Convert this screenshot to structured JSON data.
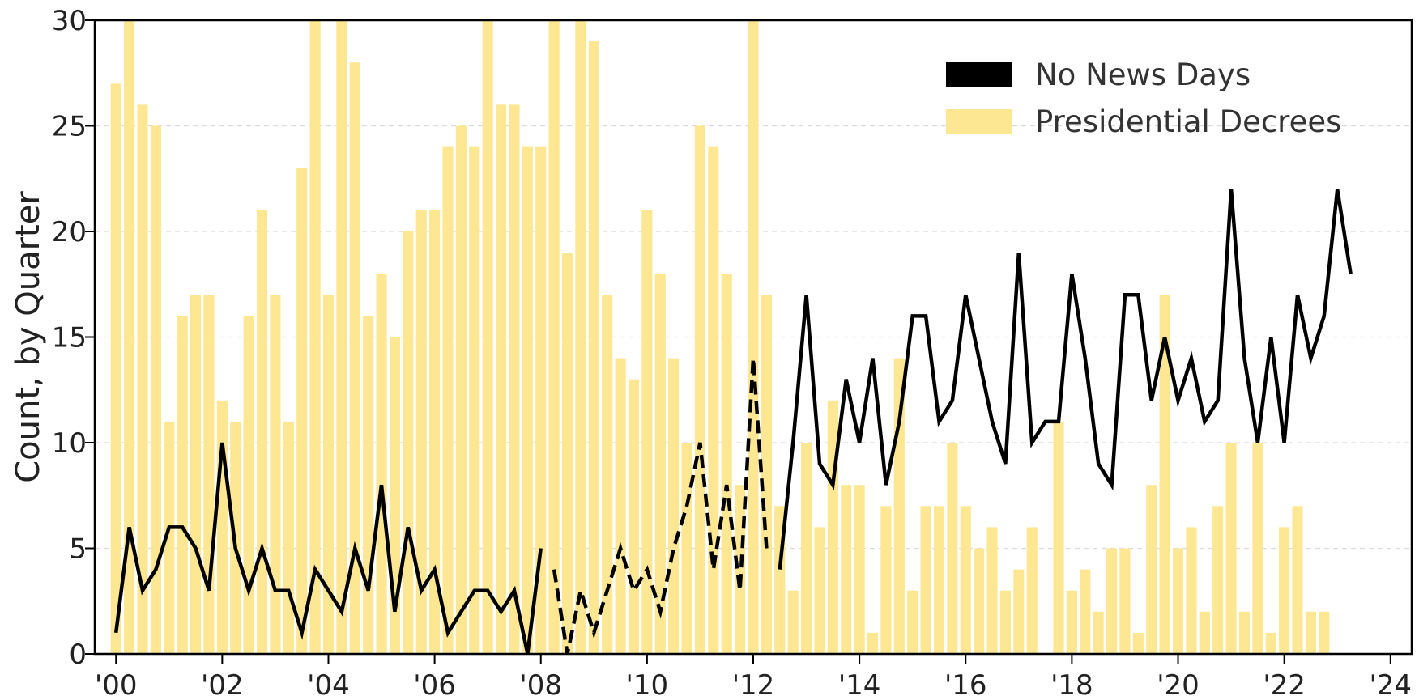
{
  "chart_data": {
    "type": "bar",
    "title": "",
    "xlabel": "",
    "ylabel": "Count, by Quarter",
    "ylim": [
      0,
      30
    ],
    "xlim": [
      1999.6,
      2024.4
    ],
    "x_ticks": [
      2000,
      2002,
      2004,
      2006,
      2008,
      2010,
      2012,
      2014,
      2016,
      2018,
      2020,
      2022,
      2024
    ],
    "x_tick_labels": [
      "'00",
      "'02",
      "'04",
      "'06",
      "'08",
      "'10",
      "'12",
      "'14",
      "'16",
      "'18",
      "'20",
      "'22",
      "'24"
    ],
    "y_ticks": [
      0,
      5,
      10,
      15,
      20,
      25,
      30
    ],
    "y_tick_labels": [
      "0",
      "5",
      "10",
      "15",
      "20",
      "25",
      "30"
    ],
    "grid": "horizontal dashed",
    "legend_position": "top-right",
    "series": [
      {
        "name": "Presidential Decrees",
        "kind": "bar",
        "color": "#fde792",
        "start": 2000.0,
        "step": 0.25,
        "values": [
          27,
          30,
          26,
          25,
          11,
          16,
          17,
          17,
          12,
          11,
          16,
          21,
          17,
          11,
          23,
          30,
          17,
          30,
          28,
          16,
          18,
          15,
          20,
          21,
          21,
          24,
          25,
          24,
          30,
          26,
          26,
          24,
          24,
          30,
          19,
          30,
          29,
          17,
          14,
          13,
          21,
          18,
          14,
          10,
          25,
          24,
          18,
          8,
          30,
          17,
          7,
          3,
          10,
          6,
          12,
          8,
          8,
          1,
          7,
          14,
          3,
          7,
          7,
          10,
          7,
          5,
          6,
          3,
          4,
          6,
          0,
          11,
          3,
          4,
          2,
          5,
          5,
          1,
          8,
          17,
          5,
          6,
          2,
          7,
          10,
          2,
          10,
          1,
          6,
          7,
          2,
          2
        ]
      },
      {
        "name": "No News Days",
        "kind": "line",
        "color": "#000000",
        "segments": [
          {
            "style": "solid",
            "x": [
              2000.0,
              2000.25,
              2000.5,
              2000.75,
              2001.0,
              2001.25,
              2001.5,
              2001.75,
              2002.0,
              2002.25,
              2002.5,
              2002.75,
              2003.0,
              2003.25,
              2003.5,
              2003.75,
              2004.0,
              2004.25,
              2004.5,
              2004.75,
              2005.0,
              2005.25,
              2005.5,
              2005.75,
              2006.0,
              2006.25,
              2006.5,
              2006.75,
              2007.0,
              2007.25,
              2007.5,
              2007.75,
              2008.0
            ],
            "y": [
              1,
              6,
              3,
              4,
              6,
              6,
              5,
              3,
              10,
              5,
              3,
              5,
              3,
              3,
              1,
              4,
              3,
              2,
              5,
              3,
              8,
              2,
              6,
              3,
              4,
              1,
              2,
              3,
              3,
              2,
              3,
              0,
              5
            ]
          },
          {
            "style": "dashed",
            "x": [
              2008.25,
              2008.5,
              2008.75,
              2009.0,
              2009.25,
              2009.5,
              2009.75,
              2010.0,
              2010.25,
              2010.5,
              2010.75,
              2011.0,
              2011.25,
              2011.5,
              2011.75,
              2012.0,
              2012.25
            ],
            "y": [
              4,
              0,
              3,
              1,
              3,
              5,
              3,
              4,
              2,
              5,
              7,
              10,
              4,
              8,
              3,
              14,
              5
            ]
          },
          {
            "style": "solid",
            "x": [
              2012.5,
              2012.75,
              2013.0,
              2013.25,
              2013.5,
              2013.75,
              2014.0,
              2014.25,
              2014.5,
              2014.75,
              2015.0,
              2015.25,
              2015.5,
              2015.75,
              2016.0,
              2016.25,
              2016.5,
              2016.75,
              2017.0,
              2017.25,
              2017.5,
              2017.75,
              2018.0,
              2018.25,
              2018.5,
              2018.75,
              2019.0,
              2019.25,
              2019.5,
              2019.75,
              2020.0,
              2020.25,
              2020.5,
              2020.75,
              2021.0,
              2021.25,
              2021.5,
              2021.75,
              2022.0,
              2022.25,
              2022.5,
              2022.75,
              2023.0,
              2023.25
            ],
            "y": [
              4,
              10,
              17,
              9,
              8,
              13,
              10,
              14,
              8,
              11,
              16,
              16,
              11,
              12,
              17,
              14,
              11,
              9,
              19,
              10,
              11,
              11,
              18,
              14,
              9,
              8,
              17,
              17,
              12,
              15,
              12,
              14,
              11,
              12,
              22,
              14,
              10,
              15,
              10,
              17,
              14,
              16,
              22,
              18
            ]
          }
        ]
      }
    ],
    "legend": [
      "No News Days",
      "Presidential Decrees"
    ]
  }
}
